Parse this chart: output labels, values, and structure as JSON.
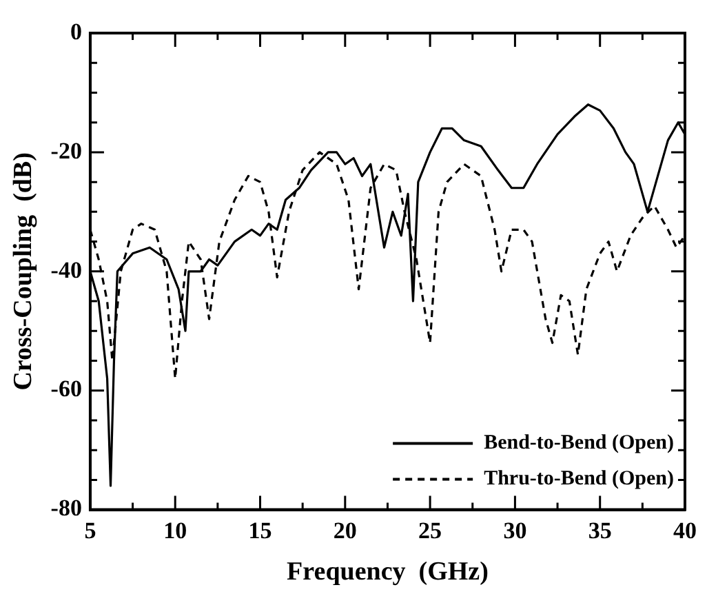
{
  "chart_data": {
    "type": "line",
    "xlabel": "Frequency  (GHz)",
    "ylabel": "Cross-Coupling  (dB)",
    "xlim": [
      5,
      40
    ],
    "ylim": [
      -80,
      0
    ],
    "xticks": [
      5,
      {
        "value": 7.5,
        "label": null
      },
      10,
      {
        "value": 12.5,
        "label": null
      },
      15,
      {
        "value": 17.5,
        "label": null
      },
      20,
      {
        "value": 22.5,
        "label": null
      },
      25,
      {
        "value": 27.5,
        "label": null
      },
      30,
      {
        "value": 32.5,
        "label": null
      },
      35,
      {
        "value": 37.5,
        "label": null
      },
      40
    ],
    "yticks": [
      -80,
      {
        "value": -75,
        "label": null
      },
      {
        "value": -70,
        "label": null
      },
      {
        "value": -65,
        "label": null
      },
      -60,
      {
        "value": -55,
        "label": null
      },
      {
        "value": -50,
        "label": null
      },
      {
        "value": -45,
        "label": null
      },
      -40,
      {
        "value": -35,
        "label": null
      },
      {
        "value": -30,
        "label": null
      },
      {
        "value": -25,
        "label": null
      },
      -20,
      {
        "value": -15,
        "label": null
      },
      {
        "value": -10,
        "label": null
      },
      {
        "value": -5,
        "label": null
      },
      0
    ],
    "grid": false,
    "legend": "bottom right",
    "marker": "none",
    "series": [
      {
        "name": "Bend-to-Bend (Open)",
        "color": "#000000",
        "line_style": "solid",
        "x": [
          5,
          5.5,
          6,
          6.2,
          6.4,
          6.6,
          7.5,
          8.5,
          9.5,
          10.2,
          10.6,
          10.8,
          11.5,
          12,
          12.5,
          13.5,
          14.5,
          15,
          15.5,
          16,
          16.5,
          17.3,
          18,
          19,
          19.5,
          20,
          20.5,
          21,
          21.5,
          22.3,
          22.8,
          23.3,
          23.7,
          24,
          24.3,
          25,
          25.7,
          26.3,
          27,
          28,
          29,
          29.8,
          30.5,
          31.3,
          32.5,
          33.5,
          34.3,
          35,
          35.8,
          36.5,
          37,
          37.8,
          38.3,
          39,
          39.6,
          40
        ],
        "values": [
          -40,
          -45,
          -58,
          -76,
          -55,
          -40,
          -37,
          -36,
          -38,
          -43,
          -50,
          -40,
          -40,
          -38,
          -39,
          -35,
          -33,
          -34,
          -32,
          -33,
          -28,
          -26,
          -23,
          -20,
          -20,
          -22,
          -21,
          -24,
          -22,
          -36,
          -30,
          -34,
          -27,
          -45,
          -25,
          -20,
          -16,
          -16,
          -18,
          -19,
          -23,
          -26,
          -26,
          -22,
          -17,
          -14,
          -12,
          -13,
          -16,
          -20,
          -22,
          -30,
          -25,
          -18,
          -15,
          -17
        ]
      },
      {
        "name": "Thru-to-Bend (Open)",
        "color": "#000000",
        "line_style": "dashed",
        "x": [
          5,
          5.5,
          6,
          6.3,
          6.8,
          7.5,
          8,
          8.8,
          9.5,
          10,
          10.4,
          10.8,
          11.5,
          12,
          12.6,
          13.5,
          14.3,
          15,
          15.5,
          16,
          16.7,
          17.5,
          18.5,
          19.5,
          20.2,
          20.8,
          21.5,
          22.3,
          23,
          23.5,
          24.2,
          25,
          25.5,
          26,
          27,
          28,
          28.8,
          29.2,
          29.8,
          30.5,
          31,
          31.8,
          32.2,
          32.7,
          33.2,
          33.7,
          34.2,
          35,
          35.5,
          36,
          36.8,
          37.5,
          38.2,
          39,
          39.5,
          40
        ],
        "values": [
          -33,
          -38,
          -45,
          -55,
          -40,
          -33,
          -32,
          -33,
          -40,
          -58,
          -45,
          -35,
          -38,
          -48,
          -35,
          -28,
          -24,
          -25,
          -30,
          -41,
          -30,
          -23,
          -20,
          -22,
          -28,
          -43,
          -26,
          -22,
          -23,
          -30,
          -38,
          -52,
          -30,
          -25,
          -22,
          -24,
          -33,
          -40,
          -33,
          -33,
          -35,
          -48,
          -52,
          -44,
          -45,
          -54,
          -43,
          -37,
          -35,
          -40,
          -34,
          -31,
          -29,
          -33,
          -36,
          -34
        ]
      }
    ]
  }
}
